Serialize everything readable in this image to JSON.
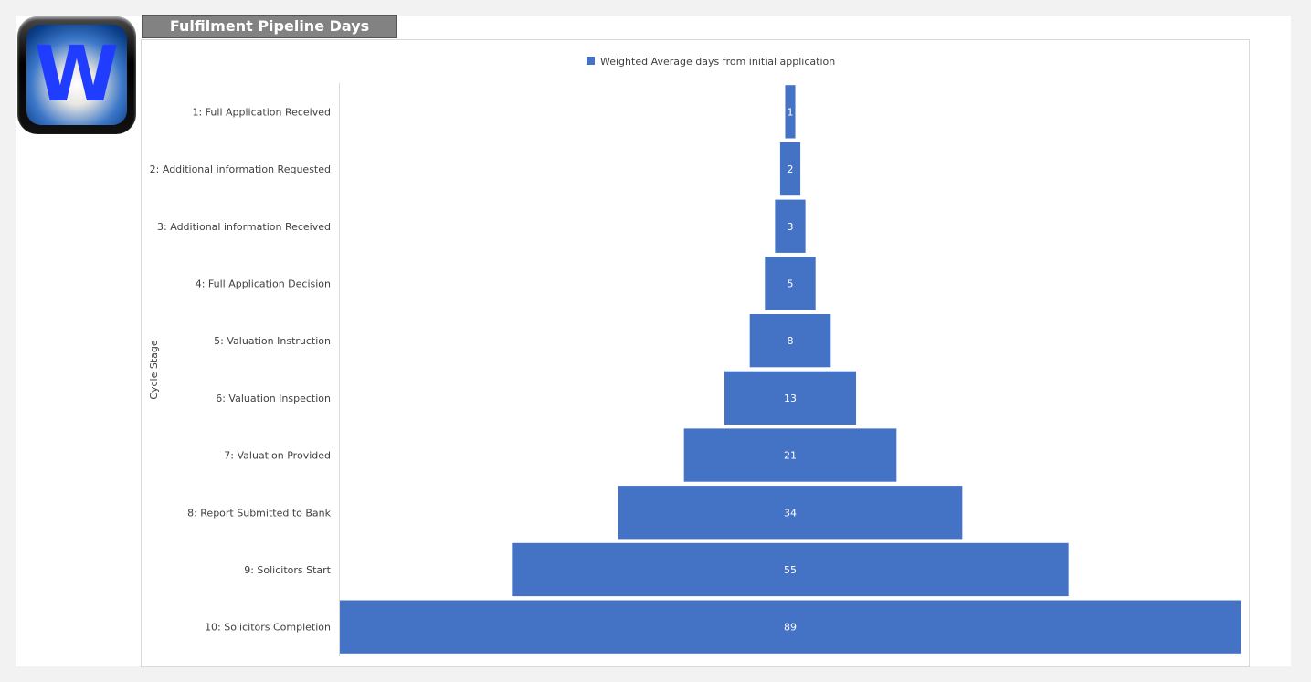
{
  "header": {
    "title": "Fulfilment Pipeline Days",
    "logo_letter": "W"
  },
  "chart_data": {
    "type": "bar",
    "subtype": "funnel",
    "title": "",
    "xlabel": "",
    "ylabel": "Cycle Stage",
    "legend_position": "top",
    "bar_color": "#4472c4",
    "grid": false,
    "categories": [
      "1: Full Application Received",
      "2: Additional information Requested",
      "3: Additional information Received",
      "4: Full Application Decision",
      "5: Valuation Instruction",
      "6: Valuation Inspection",
      "7: Valuation Provided",
      "8: Report Submitted to Bank",
      "9: Solicitors Start",
      "10: Solicitors Completion"
    ],
    "series": [
      {
        "name": "Weighted Average days from initial application",
        "values": [
          1,
          2,
          3,
          5,
          8,
          13,
          21,
          34,
          55,
          89
        ]
      }
    ],
    "xlim": [
      0,
      89
    ]
  }
}
